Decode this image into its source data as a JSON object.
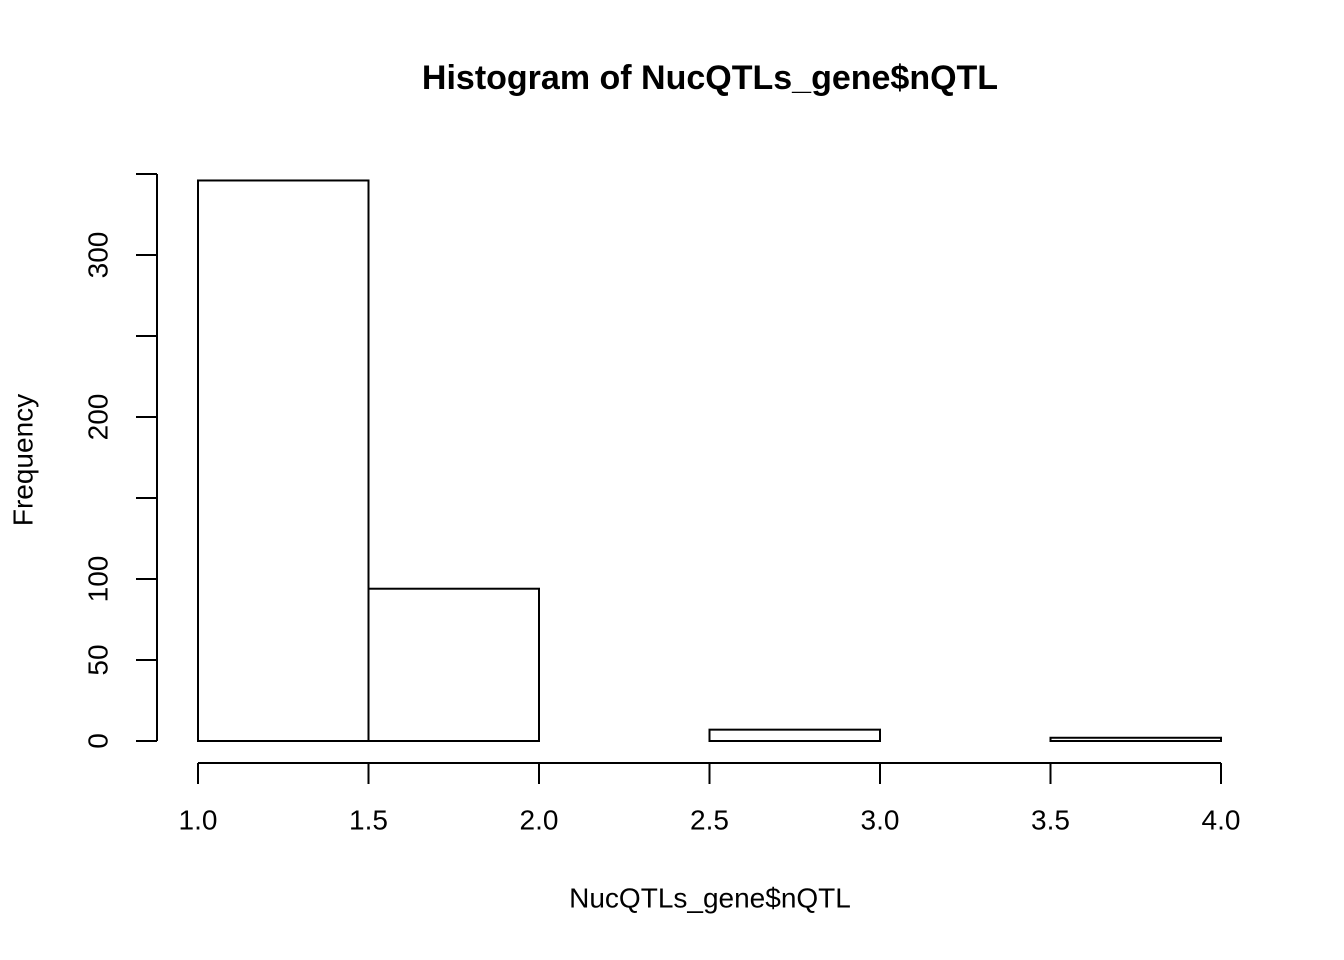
{
  "chart_data": {
    "type": "histogram",
    "title": "Histogram of NucQTLs_gene$nQTL",
    "xlabel": "NucQTLs_gene$nQTL",
    "ylabel": "Frequency",
    "bins": [
      1.0,
      1.5,
      2.0,
      2.5,
      3.0,
      3.5,
      4.0
    ],
    "values": [
      346,
      94,
      0,
      7,
      0,
      2
    ],
    "color": "#ffffff",
    "xlim": [
      1.0,
      4.0
    ],
    "xticks": [
      {
        "value": 1.0,
        "label": "1.0"
      },
      {
        "value": 1.5,
        "label": "1.5"
      },
      {
        "value": 2.0,
        "label": "2.0"
      },
      {
        "value": 2.5,
        "label": "2.5"
      },
      {
        "value": 3.0,
        "label": "3.0"
      },
      {
        "value": 3.5,
        "label": "3.5"
      },
      {
        "value": 4.0,
        "label": "4.0"
      }
    ],
    "ylim": [
      0,
      350
    ],
    "yticks": [
      0,
      50,
      100,
      200,
      300
    ],
    "yminor_ticks": [
      150,
      250,
      350
    ]
  }
}
